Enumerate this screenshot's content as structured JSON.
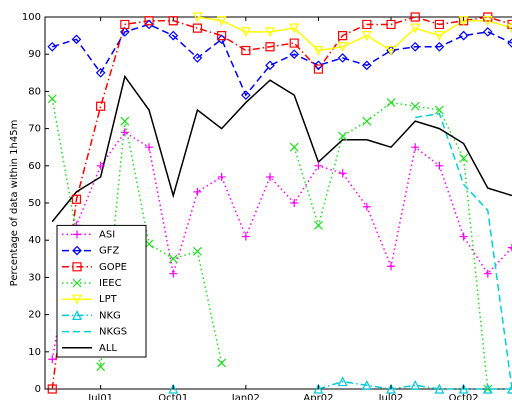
{
  "chart_data": {
    "type": "line",
    "y_label": "Percentage of data within 1h45m",
    "x": [
      5,
      6,
      7,
      8,
      9,
      10,
      11,
      12,
      13,
      14,
      15,
      16,
      17,
      18,
      19,
      20,
      21,
      22,
      23,
      24
    ],
    "xlim": [
      4.7,
      24
    ],
    "xticks": [
      {
        "value": 7,
        "label": "Jul01"
      },
      {
        "value": 10,
        "label": "Oct01"
      },
      {
        "value": 13,
        "label": "Jan02"
      },
      {
        "value": 16,
        "label": "Apr02"
      },
      {
        "value": 19,
        "label": "Jul02"
      },
      {
        "value": 22,
        "label": "Oct02"
      }
    ],
    "ylim": [
      0,
      100
    ],
    "yticks": [
      0,
      10,
      20,
      30,
      40,
      50,
      60,
      70,
      80,
      90,
      100
    ],
    "legend": "lower-left",
    "series": [
      {
        "name": "ASI",
        "color": "#ff00ff",
        "dash": "dotted",
        "marker": "plus",
        "values": [
          8,
          44,
          60,
          69,
          65,
          31,
          53,
          57,
          41,
          57,
          50,
          60,
          58,
          49,
          33,
          65,
          60,
          41,
          31,
          38
        ]
      },
      {
        "name": "GFZ",
        "color": "#0000ff",
        "dash": "dashed",
        "marker": "diamond",
        "values": [
          92,
          94,
          85,
          96,
          98,
          95,
          89,
          94,
          79,
          87,
          90,
          87,
          89,
          87,
          91,
          92,
          92,
          95,
          96,
          93
        ]
      },
      {
        "name": "GOPE",
        "color": "#ff0000",
        "dash": "dashdot",
        "marker": "square",
        "values": [
          0,
          51,
          76,
          98,
          99,
          99,
          97,
          95,
          91,
          92,
          93,
          86,
          95,
          98,
          98,
          100,
          98,
          99,
          100,
          98
        ]
      },
      {
        "name": "IEEC",
        "color": "#22dd22",
        "dash": "dotted",
        "marker": "x",
        "values": [
          78,
          42,
          6,
          72,
          39,
          35,
          37,
          7,
          null,
          null,
          65,
          44,
          68,
          72,
          77,
          76,
          75,
          62,
          0,
          null
        ]
      },
      {
        "name": "LPT",
        "color": "#ffff00",
        "dash": "solid",
        "marker": "triangle-down",
        "values": [
          null,
          null,
          null,
          null,
          null,
          null,
          100,
          99,
          96,
          96,
          97,
          91,
          92,
          95,
          91,
          97,
          95,
          99,
          99,
          97
        ]
      },
      {
        "name": "NKG",
        "color": "#00c8d8",
        "dash": "dashdot",
        "marker": "triangle-up",
        "values": [
          null,
          null,
          null,
          null,
          null,
          0,
          null,
          null,
          null,
          null,
          null,
          0,
          2,
          1,
          0,
          1,
          0,
          0,
          0,
          0
        ]
      },
      {
        "name": "NKGS",
        "color": "#00d0d0",
        "dash": "dashed",
        "marker": "none",
        "values": [
          null,
          null,
          null,
          null,
          null,
          null,
          null,
          null,
          null,
          null,
          null,
          null,
          null,
          null,
          null,
          73,
          74,
          55,
          48,
          0
        ]
      },
      {
        "name": "ALL",
        "color": "#000000",
        "dash": "solid",
        "marker": "none",
        "values": [
          45,
          53,
          57,
          84,
          75,
          52,
          75,
          70,
          77,
          83,
          79,
          61,
          67,
          67,
          65,
          72,
          70,
          66,
          54,
          52
        ]
      }
    ]
  }
}
